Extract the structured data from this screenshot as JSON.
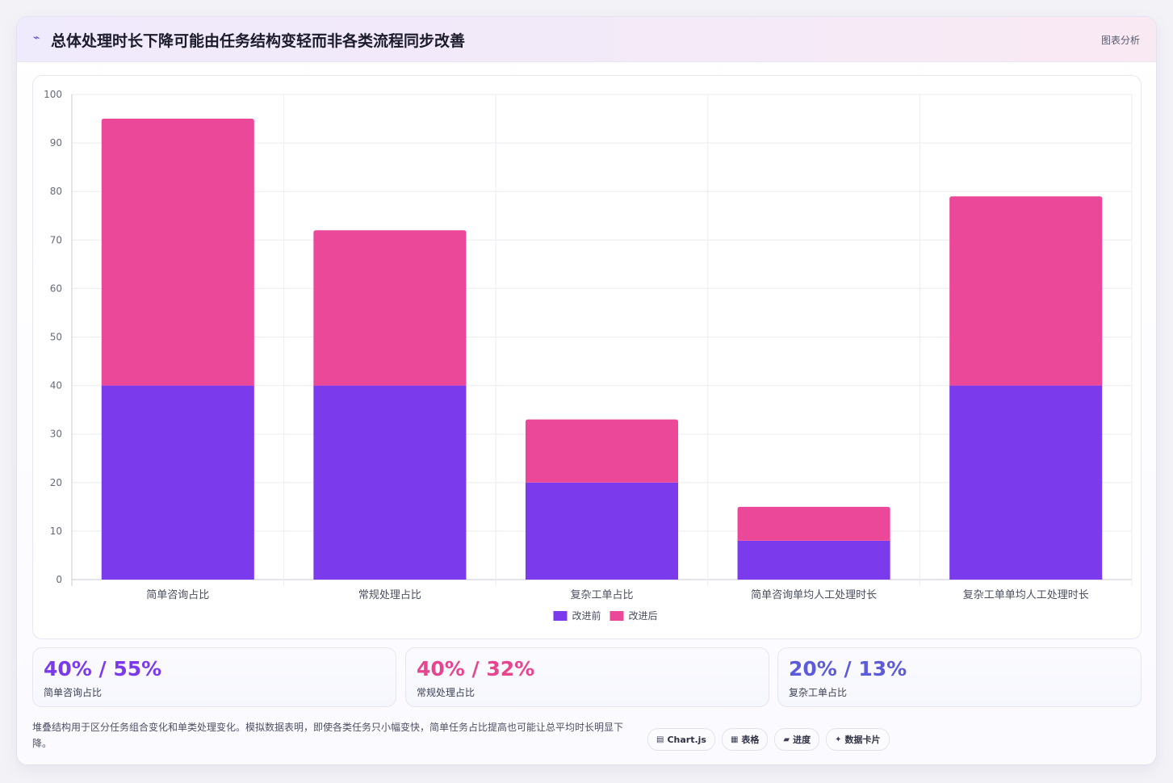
{
  "header": {
    "icon": "trend-down-icon",
    "title": "总体处理时长下降可能由任务结构变轻而非各类流程同步改善",
    "right_label": "图表分析"
  },
  "chart_data": {
    "type": "bar",
    "stacked": true,
    "categories": [
      "简单咨询占比",
      "常规处理占比",
      "复杂工单占比",
      "简单咨询单均人工处理时长",
      "复杂工单单均人工处理时长"
    ],
    "series": [
      {
        "name": "改进前",
        "color": "#7c3aed",
        "values": [
          40,
          40,
          20,
          8,
          40
        ]
      },
      {
        "name": "改进后",
        "color": "#ec4899",
        "values": [
          55,
          32,
          13,
          7,
          39
        ]
      }
    ],
    "ylim": [
      0,
      100
    ],
    "yticks": [
      0,
      10,
      20,
      30,
      40,
      50,
      60,
      70,
      80,
      90,
      100
    ],
    "grid": true,
    "legend": "bottom-center"
  },
  "stats": [
    {
      "value": "40% / 55%",
      "label": "简单咨询占比",
      "color": "#7c3aed"
    },
    {
      "value": "40% / 32%",
      "label": "常规处理占比",
      "color": "#e6458f"
    },
    {
      "value": "20% / 13%",
      "label": "复杂工单占比",
      "color": "#5b5bdc"
    }
  ],
  "footer": {
    "note": "堆叠结构用于区分任务组合变化和单类处理变化。模拟数据表明，即使各类任务只小幅变快，简单任务占比提高也可能让总平均时长明显下降。",
    "pills": [
      {
        "icon": "chart-icon",
        "glyph": "▤",
        "label": "Chart.js"
      },
      {
        "icon": "table-icon",
        "glyph": "▦",
        "label": "表格"
      },
      {
        "icon": "progress-icon",
        "glyph": "▰",
        "label": "进度"
      },
      {
        "icon": "sparkle-icon",
        "glyph": "✦",
        "label": "数据卡片"
      }
    ]
  }
}
